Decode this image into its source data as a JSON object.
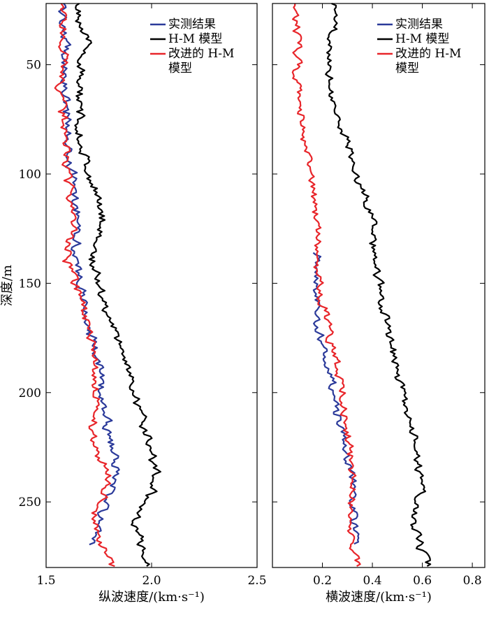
{
  "chart_data": [
    {
      "type": "line",
      "xlabel": "纵波速度/(km·s⁻¹)",
      "ylabel": "深度/m",
      "xlim": [
        1.5,
        2.5
      ],
      "ylim": [
        280,
        22
      ],
      "xticks": [
        "1.5",
        "2.0",
        "2.5"
      ],
      "yticks": [
        "50",
        "100",
        "150",
        "200",
        "250"
      ],
      "legend_position": "top-right",
      "series": [
        {
          "name": "实测结果",
          "color": "#2b3a9a",
          "depth": [
            22,
            40,
            60,
            80,
            100,
            120,
            140,
            160,
            180,
            200,
            220,
            240,
            255,
            270
          ],
          "values": [
            1.58,
            1.59,
            1.59,
            1.6,
            1.62,
            1.66,
            1.64,
            1.68,
            1.73,
            1.77,
            1.8,
            1.84,
            1.76,
            1.72
          ]
        },
        {
          "name": "H-M 模型",
          "color": "#000000",
          "depth": [
            22,
            40,
            60,
            80,
            100,
            120,
            140,
            160,
            180,
            200,
            220,
            240,
            260,
            280
          ],
          "values": [
            1.65,
            1.69,
            1.65,
            1.66,
            1.7,
            1.77,
            1.72,
            1.78,
            1.86,
            1.92,
            1.98,
            2.03,
            1.92,
            1.98
          ]
        },
        {
          "name": "改进的 H-M 模型",
          "color": "#e8252a",
          "depth": [
            22,
            40,
            60,
            80,
            100,
            120,
            140,
            160,
            180,
            200,
            220,
            240,
            260,
            280
          ],
          "values": [
            1.57,
            1.59,
            1.57,
            1.59,
            1.6,
            1.63,
            1.6,
            1.67,
            1.72,
            1.74,
            1.72,
            1.8,
            1.72,
            1.83
          ]
        }
      ]
    },
    {
      "type": "line",
      "xlabel": "横波速度/(km·s⁻¹)",
      "ylabel": "",
      "xlim": [
        0.0,
        0.85
      ],
      "ylim": [
        280,
        22
      ],
      "xticks": [
        "0.2",
        "0.4",
        "0.6",
        "0.8"
      ],
      "yticks": [],
      "legend_position": "top-right",
      "series": [
        {
          "name": "实测结果",
          "color": "#2b3a9a",
          "depth": [
            136,
            150,
            170,
            190,
            210,
            230,
            250,
            270
          ],
          "values": [
            0.18,
            0.18,
            0.18,
            0.23,
            0.26,
            0.3,
            0.33,
            0.33
          ]
        },
        {
          "name": "H-M 模型",
          "color": "#000000",
          "depth": [
            22,
            40,
            60,
            80,
            100,
            120,
            140,
            160,
            180,
            200,
            220,
            240,
            260,
            280
          ],
          "values": [
            0.25,
            0.24,
            0.23,
            0.28,
            0.34,
            0.4,
            0.41,
            0.44,
            0.48,
            0.52,
            0.56,
            0.6,
            0.56,
            0.63
          ]
        },
        {
          "name": "改进的 H-M 模型",
          "color": "#e8252a",
          "depth": [
            22,
            40,
            60,
            80,
            100,
            120,
            140,
            160,
            180,
            200,
            220,
            240,
            260,
            280
          ],
          "values": [
            0.1,
            0.1,
            0.1,
            0.12,
            0.15,
            0.18,
            0.18,
            0.2,
            0.24,
            0.28,
            0.3,
            0.33,
            0.3,
            0.34
          ]
        }
      ]
    }
  ]
}
